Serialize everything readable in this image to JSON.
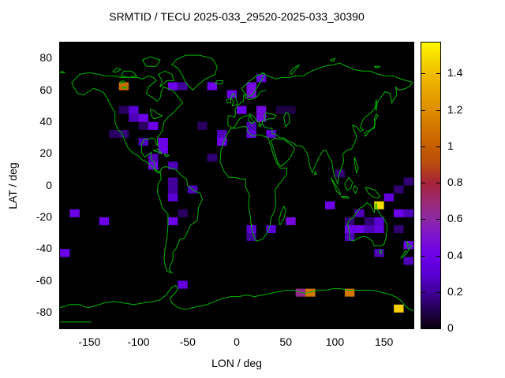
{
  "title": "SRMTID / TECU 2025-033_29520-2025-033_30390",
  "chart_data": {
    "type": "heatmap",
    "title": "SRMTID / TECU 2025-033_29520-2025-033_30390",
    "xlabel": "LON / deg",
    "ylabel": "LAT / deg",
    "xlim": [
      -180,
      180
    ],
    "ylim": [
      -90,
      90
    ],
    "grid": false,
    "background_color": "#000000",
    "coastline_color": "#00b400",
    "x_ticks": [
      -150,
      -100,
      -50,
      0,
      50,
      100,
      150
    ],
    "x_tick_labels": [
      "-150",
      "-100",
      "-50",
      "0",
      "50",
      "100",
      "150"
    ],
    "y_ticks": [
      80,
      60,
      40,
      20,
      0,
      -20,
      -40,
      -60,
      -80
    ],
    "y_tick_labels": [
      "80",
      "60",
      "40",
      "20",
      "0",
      "-20",
      "-40",
      "-60",
      "-80"
    ],
    "colorbar": {
      "min": 0,
      "max": 1.57,
      "ticks": [
        0,
        0.2,
        0.4,
        0.6,
        0.8,
        1,
        1.2,
        1.4
      ],
      "tick_labels": [
        "0",
        "0.2",
        "0.4",
        "0.6",
        "0.8",
        "1",
        "1.2",
        "1.4"
      ],
      "palette_stops": [
        [
          0.0,
          "#0b000d"
        ],
        [
          0.1,
          "#230050"
        ],
        [
          0.2,
          "#40009a"
        ],
        [
          0.3,
          "#5a00d4"
        ],
        [
          0.4,
          "#6c00e8"
        ],
        [
          0.5,
          "#7d12d2"
        ],
        [
          0.6,
          "#8c28a4"
        ],
        [
          0.7,
          "#9a2a72"
        ],
        [
          0.8,
          "#a62438"
        ],
        [
          0.9,
          "#b84a12"
        ],
        [
          1.0,
          "#c65e00"
        ],
        [
          1.2,
          "#de8d00"
        ],
        [
          1.4,
          "#f0bc00"
        ],
        [
          1.57,
          "#fdf800"
        ]
      ]
    },
    "cell_size_deg": {
      "lon": 10,
      "lat": 5
    },
    "cells_format": [
      "lon_west_edge_deg",
      "lat_south_edge_deg",
      "tecu_value"
    ],
    "cells": [
      [
        -120,
        60,
        1.05
      ],
      [
        -70,
        60,
        0.4
      ],
      [
        -60,
        60,
        0.2
      ],
      [
        -120,
        45,
        0.12
      ],
      [
        -110,
        45,
        0.3
      ],
      [
        -110,
        40,
        0.25
      ],
      [
        -100,
        40,
        0.4
      ],
      [
        -100,
        35,
        0.12
      ],
      [
        -90,
        35,
        0.4
      ],
      [
        -130,
        30,
        0.12
      ],
      [
        -120,
        30,
        0.15
      ],
      [
        -100,
        25,
        0.25
      ],
      [
        -80,
        25,
        0.4
      ],
      [
        -80,
        20,
        0.4
      ],
      [
        -90,
        15,
        0.25
      ],
      [
        -90,
        10,
        0.4
      ],
      [
        -70,
        10,
        0.25
      ],
      [
        -30,
        60,
        0.4
      ],
      [
        -10,
        55,
        0.4
      ],
      [
        10,
        60,
        0.45
      ],
      [
        10,
        55,
        0.45
      ],
      [
        20,
        65,
        0.35
      ],
      [
        0,
        45,
        0.4
      ],
      [
        20,
        45,
        0.45
      ],
      [
        20,
        40,
        0.45
      ],
      [
        10,
        35,
        0.25
      ],
      [
        10,
        30,
        0.35
      ],
      [
        30,
        30,
        0.3
      ],
      [
        -40,
        35,
        0.12
      ],
      [
        -20,
        30,
        0.25
      ],
      [
        -20,
        25,
        0.4
      ],
      [
        -30,
        15,
        0.15
      ],
      [
        40,
        45,
        0.08
      ],
      [
        50,
        45,
        0.08
      ],
      [
        -70,
        0,
        0.2
      ],
      [
        -70,
        -5,
        0.2
      ],
      [
        -70,
        -10,
        0.3
      ],
      [
        -50,
        -5,
        0.25
      ],
      [
        -60,
        -20,
        0.12
      ],
      [
        -70,
        -25,
        0.4
      ],
      [
        -170,
        -20,
        0.4
      ],
      [
        -140,
        -25,
        0.4
      ],
      [
        -180,
        -45,
        0.4
      ],
      [
        10,
        -30,
        0.3
      ],
      [
        10,
        -35,
        0.2
      ],
      [
        30,
        -30,
        0.3
      ],
      [
        50,
        -25,
        0.45
      ],
      [
        100,
        5,
        0.15
      ],
      [
        90,
        -15,
        0.4
      ],
      [
        140,
        -15,
        1.5
      ],
      [
        150,
        -10,
        0.35
      ],
      [
        160,
        -5,
        0.15
      ],
      [
        170,
        0,
        0.15
      ],
      [
        120,
        -20,
        0.25
      ],
      [
        110,
        -25,
        0.15
      ],
      [
        130,
        -25,
        0.15
      ],
      [
        140,
        -25,
        0.3
      ],
      [
        110,
        -30,
        0.4
      ],
      [
        120,
        -30,
        0.4
      ],
      [
        130,
        -30,
        0.25
      ],
      [
        140,
        -30,
        0.35
      ],
      [
        110,
        -35,
        0.25
      ],
      [
        160,
        -20,
        0.4
      ],
      [
        170,
        -20,
        0.25
      ],
      [
        160,
        -30,
        0.15
      ],
      [
        170,
        -40,
        0.4
      ],
      [
        170,
        -50,
        0.25
      ],
      [
        140,
        -45,
        0.25
      ],
      [
        -60,
        -65,
        0.35
      ],
      [
        60,
        -70,
        0.65
      ],
      [
        70,
        -70,
        1.1
      ],
      [
        110,
        -70,
        1.1
      ],
      [
        160,
        -80,
        1.45
      ]
    ]
  }
}
